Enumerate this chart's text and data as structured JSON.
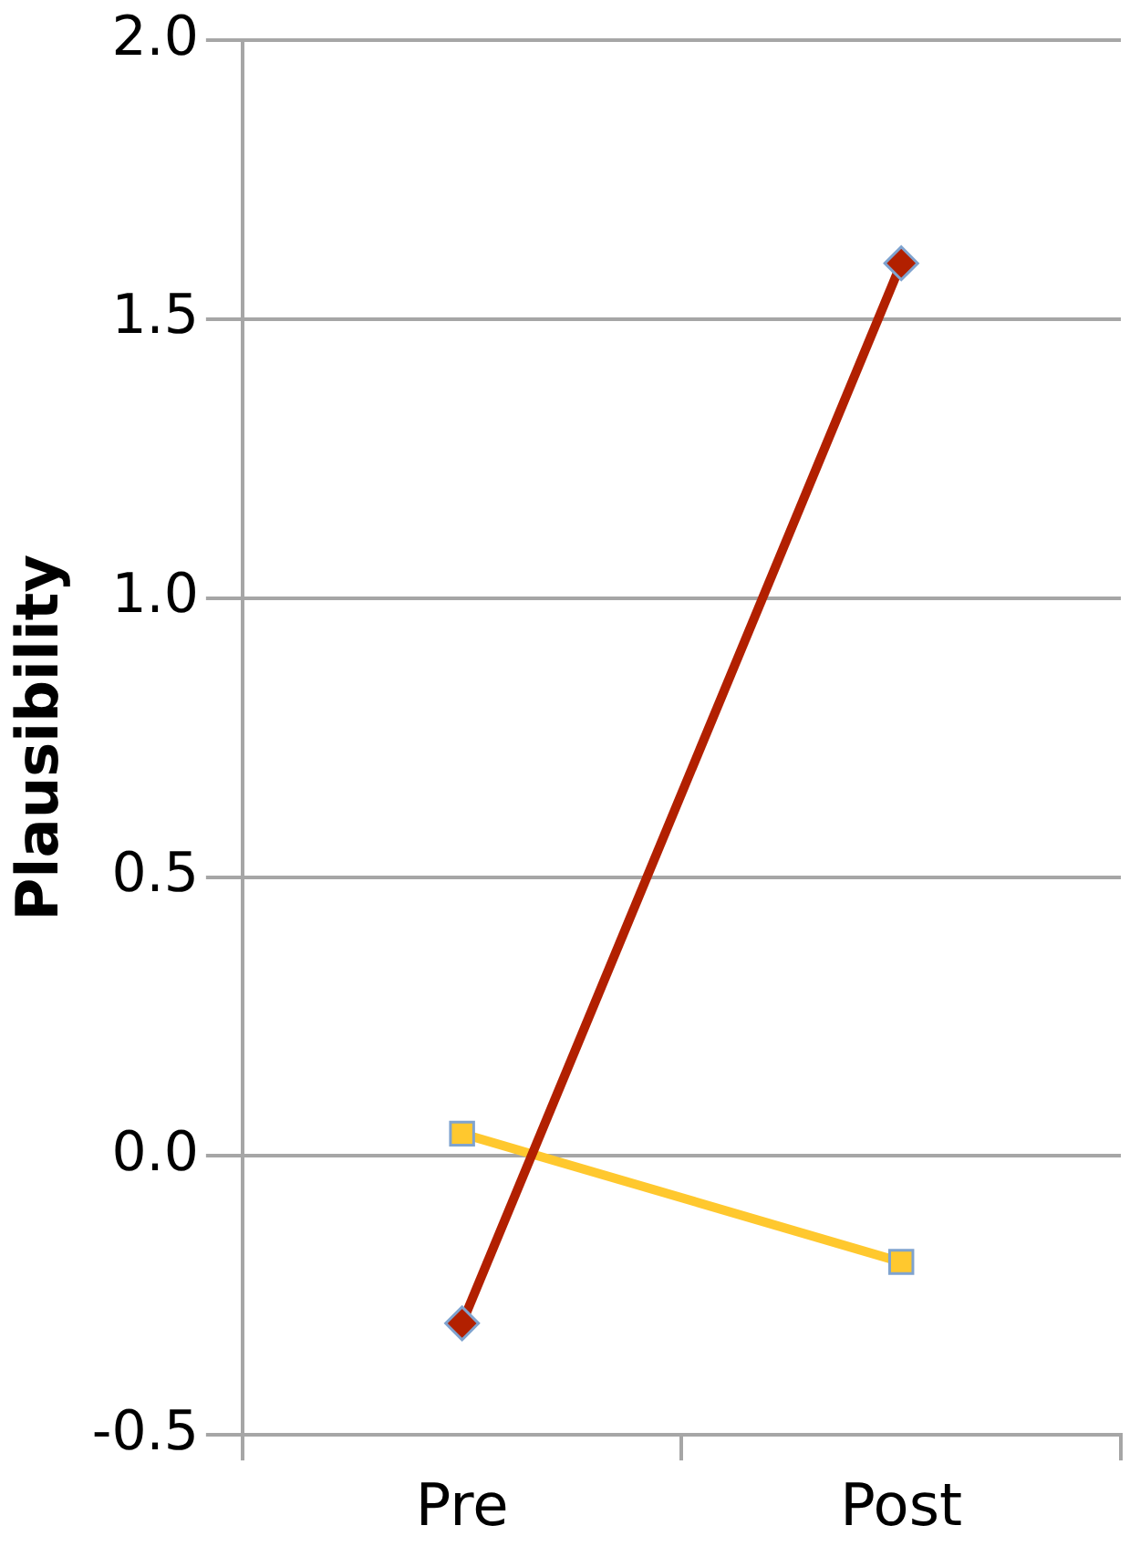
{
  "chart_data": {
    "type": "line",
    "ylabel": "Plausibility",
    "categories": [
      "Pre",
      "Post"
    ],
    "series": [
      {
        "color": "#b22000",
        "values": [
          -0.3,
          1.6
        ],
        "marker": "diamond"
      },
      {
        "color": "#ffc82e",
        "values": [
          0.04,
          -0.19
        ],
        "marker": "square"
      }
    ],
    "ylim": [
      -0.5,
      2.0
    ],
    "yticks": [
      {
        "value": -0.5,
        "label": "-0.5"
      },
      {
        "value": 0,
        "label": "0.0"
      },
      {
        "value": 0.5,
        "label": "0.5"
      },
      {
        "value": 1,
        "label": "1.0"
      },
      {
        "value": 1.5,
        "label": "1.5"
      },
      {
        "value": 2,
        "label": "2.0"
      }
    ],
    "grid": "y",
    "legend": false
  }
}
